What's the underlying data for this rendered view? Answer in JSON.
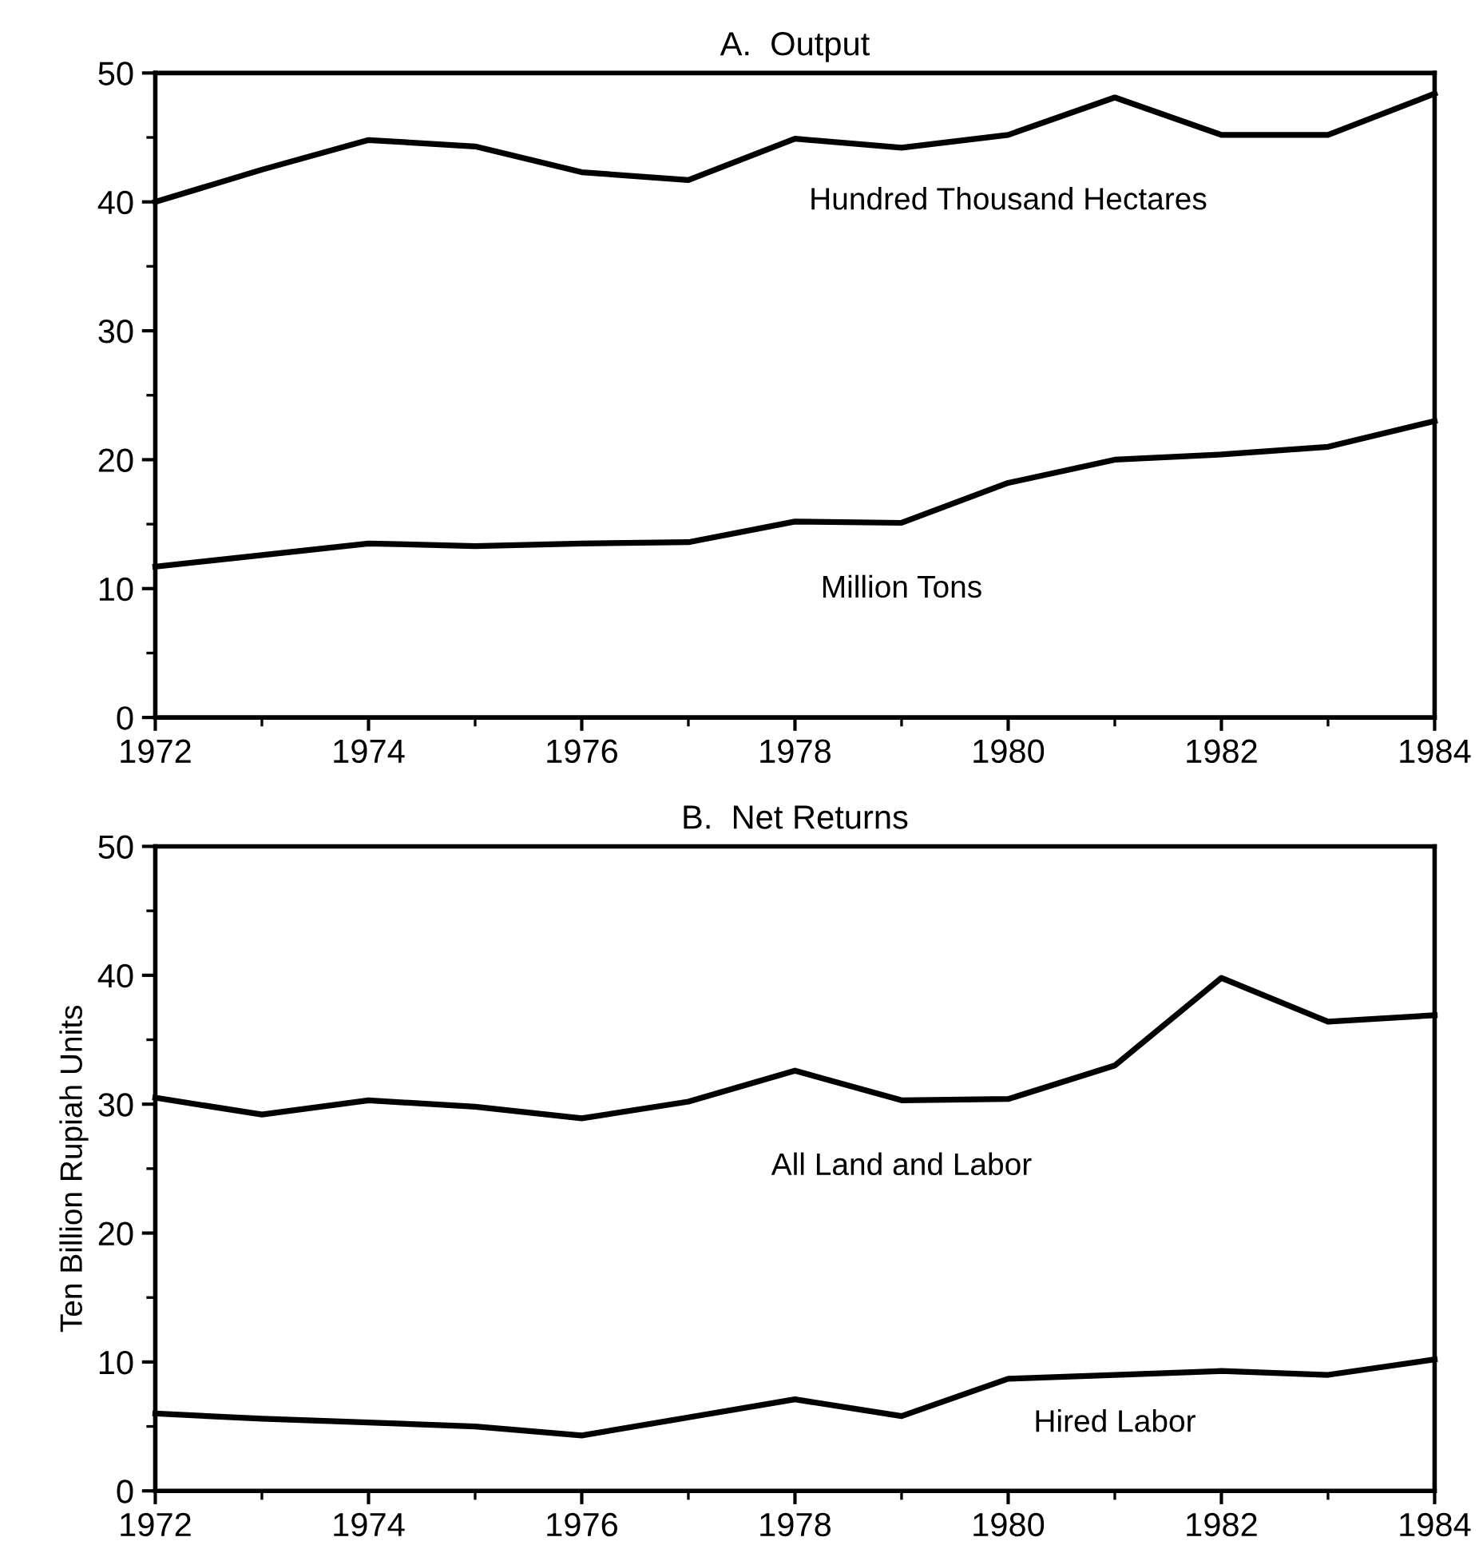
{
  "chart_data": [
    {
      "type": "line",
      "title": "A.  Output",
      "x": [
        1972,
        1973,
        1974,
        1975,
        1976,
        1977,
        1978,
        1979,
        1980,
        1981,
        1982,
        1983,
        1984
      ],
      "xlim": [
        1972,
        1984
      ],
      "xticks": [
        1972,
        1974,
        1976,
        1978,
        1980,
        1982,
        1984
      ],
      "ylim": [
        0,
        50
      ],
      "yticks": [
        0,
        10,
        20,
        30,
        40,
        50
      ],
      "grid": false,
      "legend": false,
      "marker": "none",
      "line_style": "solid",
      "series": [
        {
          "name": "Hundred Thousand Hectares",
          "color": "#000000",
          "values": [
            40,
            42.5,
            44.8,
            44.3,
            42.3,
            41.7,
            44.9,
            44.2,
            45.2,
            48.1,
            45.2,
            45.2,
            48.4
          ]
        },
        {
          "name": "Million Tons",
          "color": "#000000",
          "values": [
            11.7,
            12.6,
            13.5,
            13.3,
            13.5,
            13.6,
            15.2,
            15.1,
            18.2,
            20.0,
            20.4,
            21.0,
            23.0
          ]
        }
      ]
    },
    {
      "type": "line",
      "title": "B.  Net Returns",
      "ylabel": "Ten Billion Rupiah Units",
      "x": [
        1972,
        1973,
        1974,
        1975,
        1976,
        1977,
        1978,
        1979,
        1980,
        1981,
        1982,
        1983,
        1984
      ],
      "xlim": [
        1972,
        1984
      ],
      "xticks": [
        1972,
        1974,
        1976,
        1978,
        1980,
        1982,
        1984
      ],
      "ylim": [
        0,
        50
      ],
      "yticks": [
        0,
        10,
        20,
        30,
        40,
        50
      ],
      "grid": false,
      "legend": false,
      "marker": "none",
      "line_style": "solid",
      "series": [
        {
          "name": "All Land and Labor",
          "color": "#000000",
          "values": [
            30.5,
            29.2,
            30.3,
            29.8,
            28.9,
            30.2,
            32.6,
            30.3,
            30.4,
            33.0,
            39.8,
            36.4,
            36.9
          ]
        },
        {
          "name": "Hired Labor",
          "color": "#000000",
          "values": [
            6.0,
            5.6,
            5.3,
            5.0,
            4.3,
            5.7,
            7.1,
            5.8,
            8.7,
            9.0,
            9.3,
            9.0,
            10.2
          ]
        }
      ]
    }
  ]
}
